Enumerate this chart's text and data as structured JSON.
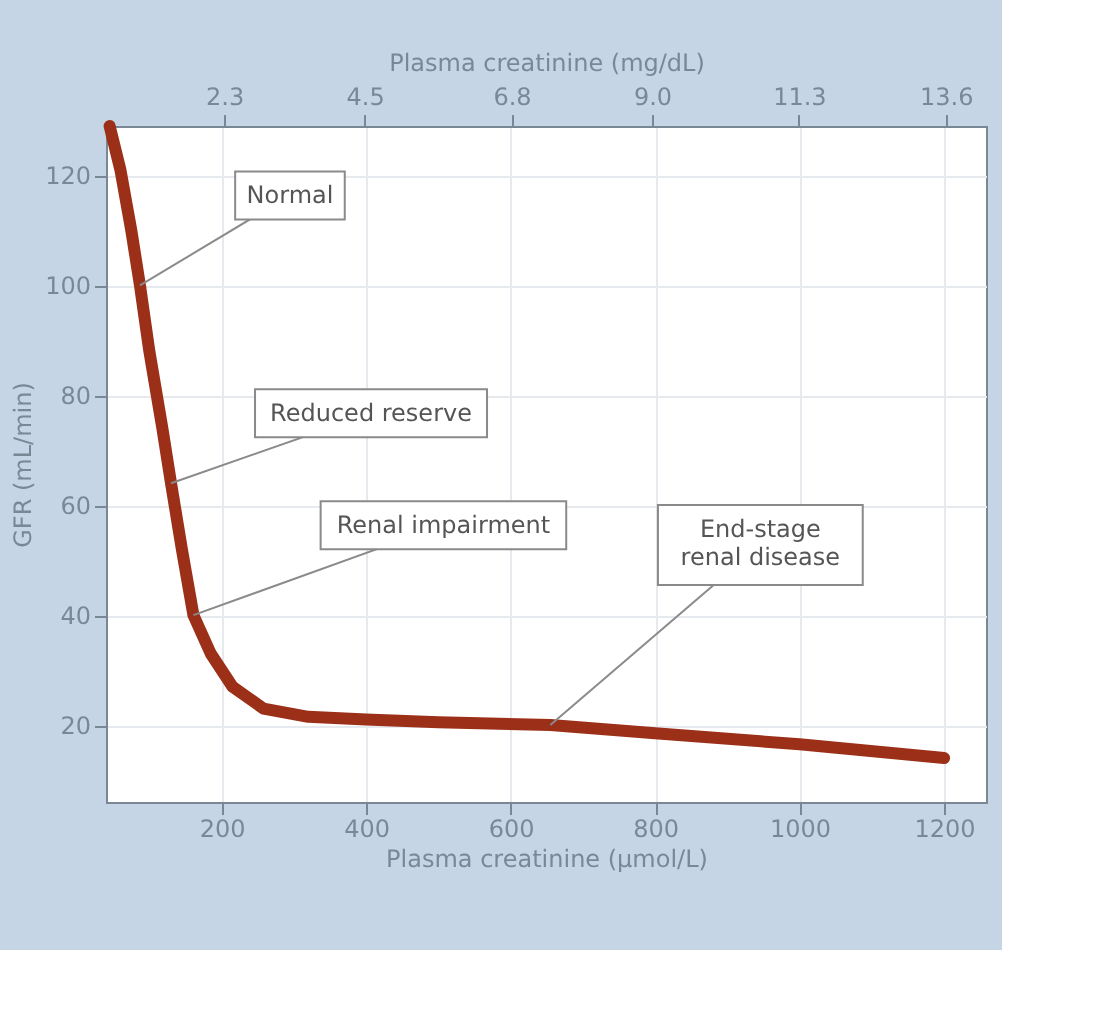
{
  "chart_data": {
    "type": "line",
    "xlabel": "Plasma creatinine (µmol/L)",
    "x2label": "Plasma creatinine (mg/dL)",
    "ylabel": "GFR (mL/min)",
    "x": [
      45,
      60,
      75,
      87,
      100,
      118,
      130,
      145,
      161,
      185,
      215,
      258,
      320,
      400,
      500,
      655,
      800,
      1000,
      1200
    ],
    "series": [
      {
        "color": "#9b2f18",
        "values": [
          129,
          121,
          110,
          100,
          88,
          74,
          64,
          52,
          40,
          33,
          27,
          23,
          21.5,
          21,
          20.5,
          20,
          18.5,
          16.5,
          14
        ]
      }
    ],
    "xlim": [
      40,
      1258
    ],
    "xticks": [
      200,
      400,
      600,
      800,
      1000,
      1200
    ],
    "x2lim": [
      0.45,
      14.23
    ],
    "x2ticks": [
      {
        "value": 2.3,
        "label": "2.3"
      },
      {
        "value": 4.5,
        "label": "4.5"
      },
      {
        "value": 6.8,
        "label": "6.8"
      },
      {
        "value": 9.0,
        "label": "9.0"
      },
      {
        "value": 11.3,
        "label": "11.3"
      },
      {
        "value": 13.6,
        "label": "13.6"
      }
    ],
    "ylim": [
      6,
      129
    ],
    "yticks": [
      20,
      40,
      60,
      80,
      100,
      120
    ],
    "grid": true,
    "marker": "none",
    "line_style": "solid",
    "annotations": [
      {
        "text": "Normal",
        "x": 87,
        "y": 100
      },
      {
        "text": "Reduced reserve",
        "x": 130,
        "y": 64
      },
      {
        "text": "Renal impairment",
        "x": 161,
        "y": 40
      },
      {
        "text": "End-stage\nrenal disease",
        "x": 655,
        "y": 20
      }
    ]
  }
}
